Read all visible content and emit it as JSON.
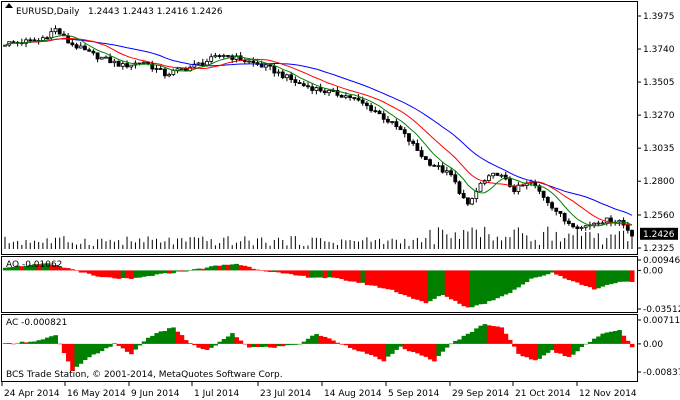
{
  "chart_data": [
    {
      "type": "candlestick",
      "title": "EURUSD,Daily",
      "ohlc_text": "1.2443 1.2443 1.2416 1.2426",
      "price_axis_ticks": [
        "1.3975",
        "1.3740",
        "1.3505",
        "1.3270",
        "1.3035",
        "1.2800",
        "1.2560",
        "1.2325"
      ],
      "last_price_label": "1.2426",
      "ylim": [
        1.2325,
        1.3975
      ],
      "indicators": [
        "Moving Average (blue)",
        "Moving Average (red)",
        "Moving Average (green)"
      ],
      "bar_count": 150,
      "price_path": [
        [
          0,
          1.378
        ],
        [
          8,
          1.38
        ],
        [
          12,
          1.388
        ],
        [
          15,
          1.379
        ],
        [
          20,
          1.371
        ],
        [
          28,
          1.362
        ],
        [
          33,
          1.365
        ],
        [
          38,
          1.356
        ],
        [
          45,
          1.362
        ],
        [
          52,
          1.37
        ],
        [
          58,
          1.365
        ],
        [
          63,
          1.36
        ],
        [
          70,
          1.349
        ],
        [
          76,
          1.344
        ],
        [
          82,
          1.34
        ],
        [
          88,
          1.33
        ],
        [
          94,
          1.316
        ],
        [
          100,
          1.295
        ],
        [
          106,
          1.284
        ],
        [
          110,
          1.262
        ],
        [
          113,
          1.278
        ],
        [
          117,
          1.286
        ],
        [
          121,
          1.274
        ],
        [
          125,
          1.279
        ],
        [
          129,
          1.266
        ],
        [
          133,
          1.252
        ],
        [
          137,
          1.247
        ],
        [
          141,
          1.252
        ],
        [
          146,
          1.252
        ],
        [
          149,
          1.2426
        ]
      ],
      "colors": {
        "ma_blue": "#0000ff",
        "ma_red": "#ff0000",
        "ma_green": "#008000",
        "candle": "#000000",
        "volume": "#000000"
      }
    },
    {
      "type": "histogram",
      "title": "AO -0.01062",
      "axis_ticks": [
        "0.00946",
        "0.00",
        "-0.03512"
      ],
      "ylim": [
        -0.03512,
        0.00946
      ],
      "values_path": [
        [
          0,
          0.003
        ],
        [
          10,
          0.006
        ],
        [
          16,
          0.001
        ],
        [
          22,
          -0.006
        ],
        [
          30,
          -0.008
        ],
        [
          36,
          -0.004
        ],
        [
          44,
          0.0
        ],
        [
          50,
          0.004
        ],
        [
          55,
          0.006
        ],
        [
          60,
          0.001
        ],
        [
          66,
          -0.003
        ],
        [
          72,
          -0.006
        ],
        [
          78,
          -0.007
        ],
        [
          84,
          -0.011
        ],
        [
          92,
          -0.018
        ],
        [
          100,
          -0.03
        ],
        [
          104,
          -0.022
        ],
        [
          110,
          -0.034
        ],
        [
          114,
          -0.03
        ],
        [
          120,
          -0.02
        ],
        [
          125,
          -0.008
        ],
        [
          130,
          -0.002
        ],
        [
          135,
          -0.01
        ],
        [
          140,
          -0.017
        ],
        [
          145,
          -0.011
        ],
        [
          149,
          -0.0106
        ]
      ],
      "colors": {
        "up": "#008000",
        "down": "#ff0000"
      }
    },
    {
      "type": "histogram",
      "title": "AC -0.000821",
      "axis_ticks": [
        "0.00711",
        "0.00",
        "-0.00837"
      ],
      "ylim": [
        -0.00837,
        0.00711
      ],
      "values_path": [
        [
          0,
          0.0
        ],
        [
          8,
          0.001
        ],
        [
          12,
          0.0025
        ],
        [
          16,
          -0.008
        ],
        [
          20,
          -0.004
        ],
        [
          26,
          0.0
        ],
        [
          30,
          -0.003
        ],
        [
          34,
          0.002
        ],
        [
          40,
          0.005
        ],
        [
          44,
          0.0
        ],
        [
          48,
          -0.002
        ],
        [
          54,
          0.003
        ],
        [
          58,
          -0.001
        ],
        [
          64,
          -0.001
        ],
        [
          70,
          0.0
        ],
        [
          74,
          0.003
        ],
        [
          80,
          0.0
        ],
        [
          86,
          -0.003
        ],
        [
          90,
          -0.005
        ],
        [
          94,
          -0.001
        ],
        [
          98,
          -0.003
        ],
        [
          102,
          -0.005
        ],
        [
          106,
          0.0
        ],
        [
          110,
          0.003
        ],
        [
          114,
          0.006
        ],
        [
          118,
          0.005
        ],
        [
          122,
          -0.003
        ],
        [
          126,
          -0.005
        ],
        [
          130,
          -0.002
        ],
        [
          134,
          -0.004
        ],
        [
          138,
          0.0
        ],
        [
          142,
          0.003
        ],
        [
          146,
          0.004
        ],
        [
          149,
          -0.0008
        ]
      ],
      "colors": {
        "up": "#008000",
        "down": "#ff0000"
      }
    }
  ],
  "x_axis_labels": [
    "24 Apr 2014",
    "16 May 2014",
    "9 Jun 2014",
    "1 Jul 2014",
    "23 Jul 2014",
    "14 Aug 2014",
    "5 Sep 2014",
    "29 Sep 2014",
    "21 Oct 2014",
    "12 Nov 2014"
  ],
  "copyright": "BCS Trade Station, © 2001-2014, MetaQuotes Software Corp."
}
